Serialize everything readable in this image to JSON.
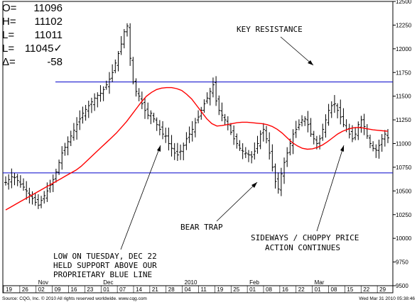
{
  "chart_data": {
    "type": "bar",
    "subtype": "ohlc",
    "ylim": [
      9500,
      12500
    ],
    "y_ticks": [
      9500,
      9750,
      10000,
      10250,
      10500,
      10750,
      11000,
      11250,
      11500,
      11750,
      12000,
      12250,
      12500
    ],
    "x_day_labels": [
      "19",
      "26",
      "02",
      "09",
      "16",
      "23",
      "01",
      "07",
      "14",
      "21",
      "28",
      "04",
      "11",
      "19",
      "25",
      "01",
      "08",
      "16",
      "22",
      "01",
      "08",
      "15",
      "22",
      "29"
    ],
    "x_month_labels": [
      {
        "label": "Nov",
        "at": "02"
      },
      {
        "label": "Dec",
        "at": "01"
      },
      {
        "label": "2010",
        "at": "04"
      },
      {
        "label": "Feb",
        "at": "01"
      },
      {
        "label": "Mar",
        "at": "01"
      }
    ],
    "ohlc_readout": [
      {
        "key": "O=",
        "value": "11096"
      },
      {
        "key": "H=",
        "value": "11102"
      },
      {
        "key": "L=",
        "value": "11011"
      },
      {
        "key": "L=",
        "value": "11045✓"
      },
      {
        "key": "Δ=",
        "value": "-58"
      }
    ],
    "resistance_level": 11650,
    "support_level": 10690,
    "closes": [
      10590,
      10620,
      10650,
      10640,
      10610,
      10570,
      10540,
      10500,
      10460,
      10420,
      10380,
      10350,
      10400,
      10450,
      10500,
      10560,
      10620,
      10700,
      10800,
      10900,
      10960,
      11020,
      11080,
      11140,
      11200,
      11260,
      11320,
      11360,
      11400,
      11440,
      11480,
      11510,
      11530,
      11570,
      11620,
      11680,
      11750,
      11850,
      11950,
      12050,
      12180,
      12240,
      11900,
      11650,
      11550,
      11500,
      11420,
      11350,
      11300,
      11320,
      11260,
      11200,
      11150,
      11100,
      11080,
      11000,
      10950,
      10900,
      10880,
      10920,
      10980,
      11050,
      11100,
      11150,
      11220,
      11280,
      11350,
      11420,
      11480,
      11550,
      11620,
      11450,
      11350,
      11300,
      11250,
      11200,
      11120,
      11050,
      11000,
      10950,
      10920,
      10900,
      10880,
      10860,
      10920,
      11000,
      11100,
      11150,
      11050,
      10900,
      10750,
      10600,
      10520,
      10680,
      10800,
      10900,
      11000,
      11100,
      11150,
      11200,
      11250,
      11260,
      11200,
      11100,
      11050,
      11000,
      11050,
      11150,
      11250,
      11350,
      11400,
      11420,
      11350,
      11280,
      11200,
      11150,
      11100,
      11050,
      11100,
      11200,
      11250,
      11180,
      11080,
      11000,
      10950,
      10930,
      10980,
      11050,
      11100,
      11060
    ],
    "ma": [
      10300,
      10330,
      10360,
      10390,
      10420,
      10450,
      10480,
      10510,
      10540,
      10570,
      10600,
      10630,
      10660,
      10690,
      10720,
      10760,
      10810,
      10860,
      10910,
      10960,
      11010,
      11060,
      11110,
      11170,
      11230,
      11300,
      11370,
      11440,
      11500,
      11540,
      11570,
      11585,
      11590,
      11590,
      11580,
      11560,
      11520,
      11470,
      11400,
      11330,
      11260,
      11210,
      11185,
      11190,
      11200,
      11210,
      11220,
      11225,
      11225,
      11220,
      11215,
      11210,
      11200,
      11180,
      11150,
      11110,
      11060,
      11010,
      10975,
      10950,
      10940,
      10945,
      10960,
      10985,
      11020,
      11060,
      11100,
      11130,
      11150,
      11165,
      11170,
      11165,
      11155,
      11145,
      11140,
      11135,
      11130
    ]
  },
  "annotations": {
    "key_resistance": "KEY RESISTANCE",
    "bear_trap": "BEAR TRAP",
    "sideways_1": "SIDEWAYS / CHOPPY PRICE",
    "sideways_2": "ACTION CONTINUES",
    "low_1": "LOW ON TUESDAY, DEC 22",
    "low_2": "HELD SUPPORT ABOVE OUR",
    "low_3": "PROPRIETARY BLUE LINE"
  },
  "footer": {
    "source": "Source: CQG, Inc. © 2010 All rights reserved worldwide. www.cqg.com",
    "timestamp": "Wed Mar 31 2010 05:38:46"
  },
  "colors": {
    "bars": "#000000",
    "ma": "#ff0000",
    "levels": "#0000cc",
    "frame": "#000000"
  }
}
